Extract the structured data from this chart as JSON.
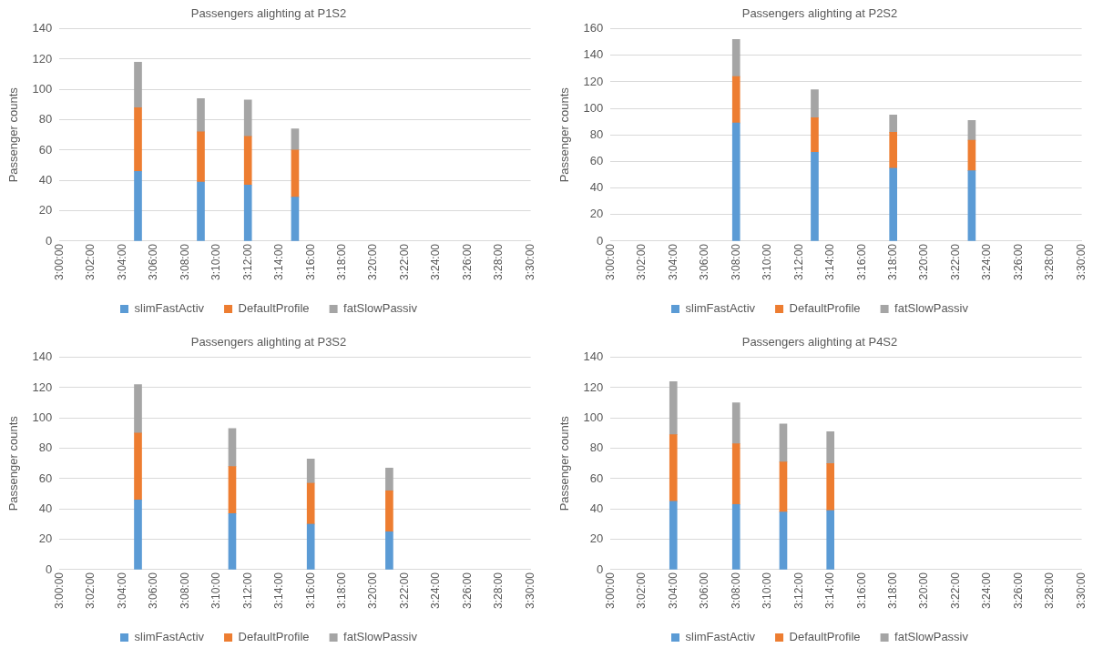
{
  "chart_data": [
    {
      "type": "bar",
      "stacked": true,
      "title": "Passengers alighting at P1S2",
      "ylabel": "Passenger counts",
      "x": [
        3.0833333333,
        3.15,
        3.2,
        3.25
      ],
      "series": [
        {
          "name": "slimFastActiv",
          "color": "#5b9bd5",
          "values": [
            46,
            39,
            37,
            29
          ]
        },
        {
          "name": "DefaultProfile",
          "color": "#ed7d31",
          "values": [
            42,
            33,
            32,
            31
          ]
        },
        {
          "name": "fatSlowPassiv",
          "color": "#a5a5a5",
          "values": [
            30,
            22,
            24,
            14
          ]
        }
      ],
      "xlim": [
        3,
        3.5
      ],
      "xticks": [
        {
          "value": 3,
          "label": "3:00:00"
        },
        {
          "value": 3.0333333333,
          "label": "3:02:00"
        },
        {
          "value": 3.0666666667,
          "label": "3:04:00"
        },
        {
          "value": 3.1,
          "label": "3:06:00"
        },
        {
          "value": 3.1333333333,
          "label": "3:08:00"
        },
        {
          "value": 3.1666666667,
          "label": "3:10:00"
        },
        {
          "value": 3.2,
          "label": "3:12:00"
        },
        {
          "value": 3.2333333333,
          "label": "3:14:00"
        },
        {
          "value": 3.2666666667,
          "label": "3:16:00"
        },
        {
          "value": 3.3,
          "label": "3:18:00"
        },
        {
          "value": 3.3333333333,
          "label": "3:20:00"
        },
        {
          "value": 3.3666666667,
          "label": "3:22:00"
        },
        {
          "value": 3.4,
          "label": "3:24:00"
        },
        {
          "value": 3.4333333333,
          "label": "3:26:00"
        },
        {
          "value": 3.4666666667,
          "label": "3:28:00"
        },
        {
          "value": 3.5,
          "label": "3:30:00"
        }
      ],
      "ylim": [
        0,
        140
      ],
      "yticks": [
        0,
        20,
        40,
        60,
        80,
        100,
        120,
        140
      ],
      "grid": "y",
      "legend": "bottom"
    },
    {
      "type": "bar",
      "stacked": true,
      "title": "Passengers alighting at P2S2",
      "ylabel": "Passenger counts",
      "x": [
        3.1333333333,
        3.2166666667,
        3.3,
        3.3833333333
      ],
      "series": [
        {
          "name": "slimFastActiv",
          "color": "#5b9bd5",
          "values": [
            89,
            67,
            55,
            53
          ]
        },
        {
          "name": "DefaultProfile",
          "color": "#ed7d31",
          "values": [
            35,
            26,
            27,
            23
          ]
        },
        {
          "name": "fatSlowPassiv",
          "color": "#a5a5a5",
          "values": [
            28,
            21,
            13,
            15
          ]
        }
      ],
      "xlim": [
        3,
        3.5
      ],
      "xticks": [
        {
          "value": 3,
          "label": "3:00:00"
        },
        {
          "value": 3.0333333333,
          "label": "3:02:00"
        },
        {
          "value": 3.0666666667,
          "label": "3:04:00"
        },
        {
          "value": 3.1,
          "label": "3:06:00"
        },
        {
          "value": 3.1333333333,
          "label": "3:08:00"
        },
        {
          "value": 3.1666666667,
          "label": "3:10:00"
        },
        {
          "value": 3.2,
          "label": "3:12:00"
        },
        {
          "value": 3.2333333333,
          "label": "3:14:00"
        },
        {
          "value": 3.2666666667,
          "label": "3:16:00"
        },
        {
          "value": 3.3,
          "label": "3:18:00"
        },
        {
          "value": 3.3333333333,
          "label": "3:20:00"
        },
        {
          "value": 3.3666666667,
          "label": "3:22:00"
        },
        {
          "value": 3.4,
          "label": "3:24:00"
        },
        {
          "value": 3.4333333333,
          "label": "3:26:00"
        },
        {
          "value": 3.4666666667,
          "label": "3:28:00"
        },
        {
          "value": 3.5,
          "label": "3:30:00"
        }
      ],
      "ylim": [
        0,
        160
      ],
      "yticks": [
        0,
        20,
        40,
        60,
        80,
        100,
        120,
        140,
        160
      ],
      "grid": "y",
      "legend": "bottom"
    },
    {
      "type": "bar",
      "stacked": true,
      "title": "Passengers alighting at P3S2",
      "ylabel": "Passenger counts",
      "x": [
        3.0833333333,
        3.1833333333,
        3.2666666667,
        3.35
      ],
      "series": [
        {
          "name": "slimFastActiv",
          "color": "#5b9bd5",
          "values": [
            46,
            37,
            30,
            25
          ]
        },
        {
          "name": "DefaultProfile",
          "color": "#ed7d31",
          "values": [
            44,
            31,
            27,
            27
          ]
        },
        {
          "name": "fatSlowPassiv",
          "color": "#a5a5a5",
          "values": [
            32,
            25,
            16,
            15
          ]
        }
      ],
      "xlim": [
        3,
        3.5
      ],
      "xticks": [
        {
          "value": 3,
          "label": "3:00:00"
        },
        {
          "value": 3.0333333333,
          "label": "3:02:00"
        },
        {
          "value": 3.0666666667,
          "label": "3:04:00"
        },
        {
          "value": 3.1,
          "label": "3:06:00"
        },
        {
          "value": 3.1333333333,
          "label": "3:08:00"
        },
        {
          "value": 3.1666666667,
          "label": "3:10:00"
        },
        {
          "value": 3.2,
          "label": "3:12:00"
        },
        {
          "value": 3.2333333333,
          "label": "3:14:00"
        },
        {
          "value": 3.2666666667,
          "label": "3:16:00"
        },
        {
          "value": 3.3,
          "label": "3:18:00"
        },
        {
          "value": 3.3333333333,
          "label": "3:20:00"
        },
        {
          "value": 3.3666666667,
          "label": "3:22:00"
        },
        {
          "value": 3.4,
          "label": "3:24:00"
        },
        {
          "value": 3.4333333333,
          "label": "3:26:00"
        },
        {
          "value": 3.4666666667,
          "label": "3:28:00"
        },
        {
          "value": 3.5,
          "label": "3:30:00"
        }
      ],
      "ylim": [
        0,
        140
      ],
      "yticks": [
        0,
        20,
        40,
        60,
        80,
        100,
        120,
        140
      ],
      "grid": "y",
      "legend": "bottom"
    },
    {
      "type": "bar",
      "stacked": true,
      "title": "Passengers alighting at P4S2",
      "ylabel": "Passenger counts",
      "x": [
        3.0666666667,
        3.1333333333,
        3.1833333333,
        3.2333333333
      ],
      "series": [
        {
          "name": "slimFastActiv",
          "color": "#5b9bd5",
          "values": [
            45,
            43,
            38,
            39
          ]
        },
        {
          "name": "DefaultProfile",
          "color": "#ed7d31",
          "values": [
            44,
            40,
            33,
            31
          ]
        },
        {
          "name": "fatSlowPassiv",
          "color": "#a5a5a5",
          "values": [
            35,
            27,
            25,
            21
          ]
        }
      ],
      "xlim": [
        3,
        3.5
      ],
      "xticks": [
        {
          "value": 3,
          "label": "3:00:00"
        },
        {
          "value": 3.0333333333,
          "label": "3:02:00"
        },
        {
          "value": 3.0666666667,
          "label": "3:04:00"
        },
        {
          "value": 3.1,
          "label": "3:06:00"
        },
        {
          "value": 3.1333333333,
          "label": "3:08:00"
        },
        {
          "value": 3.1666666667,
          "label": "3:10:00"
        },
        {
          "value": 3.2,
          "label": "3:12:00"
        },
        {
          "value": 3.2333333333,
          "label": "3:14:00"
        },
        {
          "value": 3.2666666667,
          "label": "3:16:00"
        },
        {
          "value": 3.3,
          "label": "3:18:00"
        },
        {
          "value": 3.3333333333,
          "label": "3:20:00"
        },
        {
          "value": 3.3666666667,
          "label": "3:22:00"
        },
        {
          "value": 3.4,
          "label": "3:24:00"
        },
        {
          "value": 3.4333333333,
          "label": "3:26:00"
        },
        {
          "value": 3.4666666667,
          "label": "3:28:00"
        },
        {
          "value": 3.5,
          "label": "3:30:00"
        }
      ],
      "ylim": [
        0,
        140
      ],
      "yticks": [
        0,
        20,
        40,
        60,
        80,
        100,
        120,
        140
      ],
      "grid": "y",
      "legend": "bottom"
    }
  ]
}
